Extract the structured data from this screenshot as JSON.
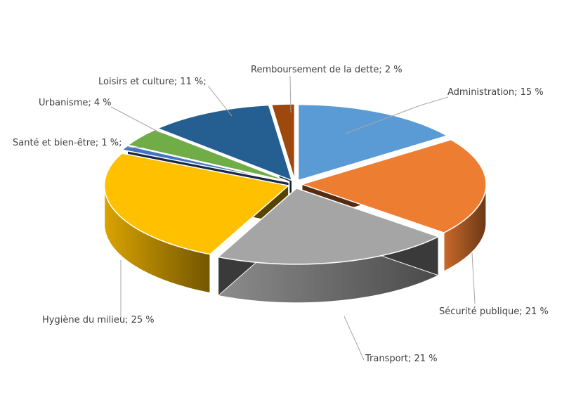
{
  "chart_data": {
    "type": "pie",
    "title": "",
    "unit": "%",
    "slices": [
      {
        "label": "Administration; 15 %",
        "value": 15,
        "color": "#5B9BD5"
      },
      {
        "label": "Sécurité publique; 21 %",
        "value": 21,
        "color": "#ED7D31"
      },
      {
        "label": "Transport; 21 %",
        "value": 21,
        "color": "#A5A5A5"
      },
      {
        "label": "Hygiène du milieu; 25 %",
        "value": 25,
        "color": "#FFC000"
      },
      {
        "label": "Santé et bien-être; 1 %;",
        "value": 1,
        "color": "#4472C4"
      },
      {
        "label": "Urbanisme; 4 %",
        "value": 4,
        "color": "#70AD47"
      },
      {
        "label": "Loisirs et culture; 11 %;",
        "value": 11,
        "color": "#255E91"
      },
      {
        "label": "Remboursement de la dette; 2 %",
        "value": 2,
        "color": "#9E480E"
      }
    ],
    "style": "3d-exploded-pie",
    "legend": "none",
    "data_labels": "outside-with-leader-lines"
  }
}
